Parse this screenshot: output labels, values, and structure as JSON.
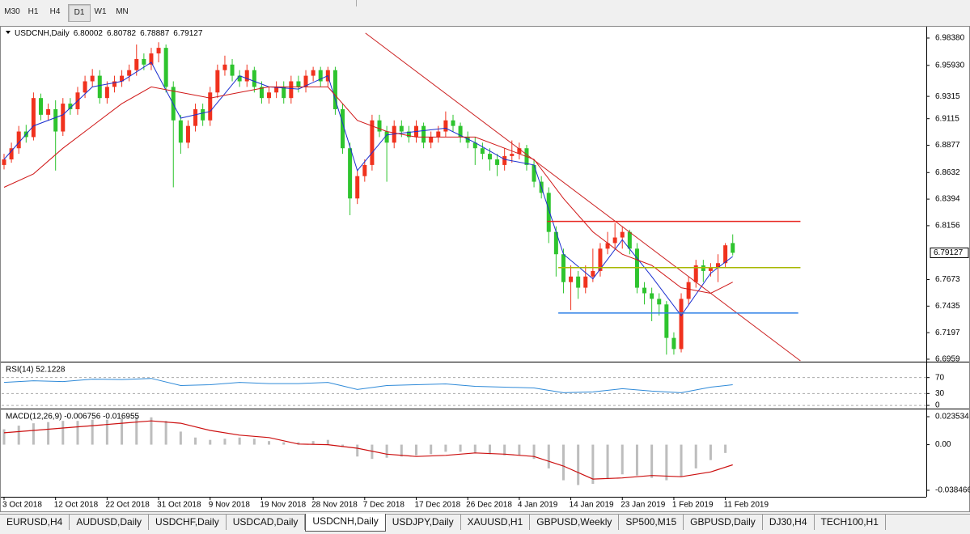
{
  "timeframes": [
    "M30",
    "H1",
    "H4",
    "D1",
    "W1",
    "MN"
  ],
  "symbol_tabs": [
    "EURUSD,H4",
    "AUDUSD,Daily",
    "USDCHF,Daily",
    "USDCAD,Daily",
    "USDCNH,Daily",
    "USDJPY,Daily",
    "XAUUSD,H1",
    "GBPUSD,Weekly",
    "SP500,M15",
    "GBPUSD,Daily",
    "DJ30,H4",
    "TECH100,H1"
  ],
  "chart_data": [
    {
      "type": "candlestick",
      "title": "USDCNH,Daily",
      "categories": [
        "3 Oct 2018",
        null,
        null,
        null,
        null,
        null,
        null,
        "12 Oct 2018",
        null,
        null,
        null,
        null,
        null,
        null,
        "22 Oct 2018",
        null,
        null,
        null,
        null,
        null,
        null,
        "31 Oct 2018",
        null,
        null,
        null,
        null,
        null,
        null,
        "9 Nov 2018",
        null,
        null,
        null,
        null,
        null,
        null,
        "19 Nov 2018",
        null,
        null,
        null,
        null,
        null,
        null,
        "28 Nov 2018",
        null,
        null,
        null,
        null,
        null,
        null,
        "7 Dec 2018",
        null,
        null,
        null,
        null,
        null,
        null,
        "17 Dec 2018",
        null,
        null,
        null,
        null,
        null,
        null,
        "26 Dec 2018",
        null,
        null,
        null,
        null,
        null,
        null,
        "4 Jan 2019",
        null,
        null,
        null,
        null,
        null,
        null,
        "14 Jan 2019",
        null,
        null,
        null,
        null,
        null,
        null,
        "23 Jan 2019",
        null,
        null,
        null,
        null,
        null,
        null,
        "1 Feb 2019",
        null,
        null,
        null,
        null,
        null,
        null,
        "11 Feb 2019",
        null
      ],
      "candles": [
        [
          6.87,
          6.88,
          6.866,
          6.875
        ],
        [
          6.875,
          6.89,
          6.872,
          6.885
        ],
        [
          6.885,
          6.905,
          6.88,
          6.9
        ],
        [
          6.9,
          6.906,
          6.89,
          6.895
        ],
        [
          6.895,
          6.935,
          6.892,
          6.93
        ],
        [
          6.93,
          6.934,
          6.91,
          6.915
        ],
        [
          6.915,
          6.925,
          6.91,
          6.92
        ],
        [
          6.92,
          6.928,
          6.865,
          6.9
        ],
        [
          6.9,
          6.93,
          6.896,
          6.925
        ],
        [
          6.925,
          6.93,
          6.915,
          6.92
        ],
        [
          6.92,
          6.94,
          6.915,
          6.935
        ],
        [
          6.935,
          6.95,
          6.93,
          6.945
        ],
        [
          6.945,
          6.956,
          6.94,
          6.95
        ],
        [
          6.95,
          6.955,
          6.925,
          6.93
        ],
        [
          6.93,
          6.945,
          6.925,
          6.94
        ],
        [
          6.94,
          6.95,
          6.935,
          6.945
        ],
        [
          6.945,
          6.955,
          6.94,
          6.95
        ],
        [
          6.95,
          6.96,
          6.945,
          6.955
        ],
        [
          6.955,
          6.978,
          6.95,
          6.965
        ],
        [
          6.965,
          6.97,
          6.955,
          6.96
        ],
        [
          6.96,
          6.975,
          6.955,
          6.97
        ],
        [
          6.97,
          6.98,
          6.962,
          6.975
        ],
        [
          6.975,
          6.978,
          6.935,
          6.94
        ],
        [
          6.94,
          6.945,
          6.85,
          6.91
        ],
        [
          6.91,
          6.915,
          6.88,
          6.89
        ],
        [
          6.89,
          6.91,
          6.885,
          6.905
        ],
        [
          6.905,
          6.925,
          6.9,
          6.92
        ],
        [
          6.92,
          6.925,
          6.905,
          6.91
        ],
        [
          6.91,
          6.94,
          6.905,
          6.935
        ],
        [
          6.935,
          6.96,
          6.93,
          6.955
        ],
        [
          6.955,
          6.968,
          6.95,
          6.96
        ],
        [
          6.96,
          6.965,
          6.945,
          6.95
        ],
        [
          6.95,
          6.955,
          6.94,
          6.945
        ],
        [
          6.945,
          6.96,
          6.94,
          6.955
        ],
        [
          6.955,
          6.958,
          6.935,
          6.94
        ],
        [
          6.94,
          6.945,
          6.925,
          6.93
        ],
        [
          6.93,
          6.94,
          6.925,
          6.935
        ],
        [
          6.935,
          6.945,
          6.93,
          6.94
        ],
        [
          6.94,
          6.945,
          6.925,
          6.93
        ],
        [
          6.93,
          6.95,
          6.925,
          6.945
        ],
        [
          6.945,
          6.95,
          6.935,
          6.94
        ],
        [
          6.94,
          6.955,
          6.935,
          6.95
        ],
        [
          6.95,
          6.958,
          6.945,
          6.955
        ],
        [
          6.955,
          6.958,
          6.94,
          6.945
        ],
        [
          6.945,
          6.958,
          6.94,
          6.955
        ],
        [
          6.955,
          6.958,
          6.915,
          6.92
        ],
        [
          6.92,
          6.925,
          6.88,
          6.885
        ],
        [
          6.885,
          6.89,
          6.825,
          6.84
        ],
        [
          6.84,
          6.865,
          6.835,
          6.86
        ],
        [
          6.86,
          6.875,
          6.855,
          6.87
        ],
        [
          6.87,
          6.915,
          6.865,
          6.91
        ],
        [
          6.91,
          6.915,
          6.895,
          6.9
        ],
        [
          6.9,
          6.905,
          6.855,
          6.89
        ],
        [
          6.89,
          6.91,
          6.885,
          6.905
        ],
        [
          6.905,
          6.91,
          6.895,
          6.9
        ],
        [
          6.9,
          6.905,
          6.89,
          6.895
        ],
        [
          6.895,
          6.91,
          6.89,
          6.905
        ],
        [
          6.905,
          6.908,
          6.885,
          6.89
        ],
        [
          6.89,
          6.9,
          6.885,
          6.895
        ],
        [
          6.895,
          6.905,
          6.89,
          6.9
        ],
        [
          6.9,
          6.918,
          6.895,
          6.91
        ],
        [
          6.91,
          6.915,
          6.9,
          6.905
        ],
        [
          6.905,
          6.908,
          6.89,
          6.895
        ],
        [
          6.895,
          6.9,
          6.885,
          6.89
        ],
        [
          6.89,
          6.895,
          6.87,
          6.885
        ],
        [
          6.885,
          6.89,
          6.875,
          6.88
        ],
        [
          6.88,
          6.885,
          6.865,
          6.875
        ],
        [
          6.875,
          6.88,
          6.86,
          6.87
        ],
        [
          6.87,
          6.885,
          6.865,
          6.878
        ],
        [
          6.878,
          6.892,
          6.872,
          6.88
        ],
        [
          6.88,
          6.89,
          6.875,
          6.885
        ],
        [
          6.885,
          6.888,
          6.865,
          6.87
        ],
        [
          6.87,
          6.875,
          6.85,
          6.855
        ],
        [
          6.855,
          6.86,
          6.84,
          6.845
        ],
        [
          6.845,
          6.85,
          6.8,
          6.81
        ],
        [
          6.81,
          6.815,
          6.77,
          6.79
        ],
        [
          6.79,
          6.795,
          6.755,
          6.765
        ],
        [
          6.765,
          6.78,
          6.74,
          6.77
        ],
        [
          6.77,
          6.775,
          6.75,
          6.76
        ],
        [
          6.76,
          6.78,
          6.755,
          6.77
        ],
        [
          6.77,
          6.795,
          6.765,
          6.775
        ],
        [
          6.775,
          6.8,
          6.77,
          6.795
        ],
        [
          6.795,
          6.81,
          6.79,
          6.8
        ],
        [
          6.8,
          6.818,
          6.795,
          6.805
        ],
        [
          6.805,
          6.815,
          6.795,
          6.81
        ],
        [
          6.81,
          6.812,
          6.79,
          6.795
        ],
        [
          6.795,
          6.8,
          6.755,
          6.76
        ],
        [
          6.76,
          6.765,
          6.745,
          6.755
        ],
        [
          6.755,
          6.76,
          6.73,
          6.75
        ],
        [
          6.75,
          6.755,
          6.735,
          6.745
        ],
        [
          6.745,
          6.748,
          6.7,
          6.715
        ],
        [
          6.715,
          6.72,
          6.7,
          6.705
        ],
        [
          6.705,
          6.755,
          6.702,
          6.75
        ],
        [
          6.75,
          6.77,
          6.745,
          6.765
        ],
        [
          6.765,
          6.785,
          6.76,
          6.78
        ],
        [
          6.78,
          6.785,
          6.765,
          6.775
        ],
        [
          6.775,
          6.782,
          6.77,
          6.778
        ],
        [
          6.778,
          6.79,
          6.765,
          6.782
        ],
        [
          6.782,
          6.8,
          6.778,
          6.798
        ],
        [
          6.80002,
          6.80782,
          6.78887,
          6.79127
        ]
      ],
      "up_color": "#f0321e",
      "down_color": "#2ec42e",
      "series": [
        {
          "color": "#1b2fd0",
          "x": [
            0,
            4,
            8,
            12,
            16,
            20,
            24,
            28,
            32,
            36,
            40,
            44,
            48,
            52,
            56,
            60,
            64,
            68,
            72,
            76,
            80,
            84,
            88,
            92,
            96,
            99
          ],
          "values": [
            6.875,
            6.905,
            6.915,
            6.94,
            6.945,
            6.962,
            6.912,
            6.918,
            6.95,
            6.94,
            6.938,
            6.95,
            6.865,
            6.897,
            6.9,
            6.903,
            6.89,
            6.875,
            6.87,
            6.79,
            6.768,
            6.803,
            6.77,
            6.735,
            6.773,
            6.788
          ]
        },
        {
          "color": "#d01818",
          "x": [
            0,
            4,
            8,
            12,
            16,
            20,
            24,
            28,
            32,
            36,
            40,
            44,
            48,
            52,
            56,
            60,
            64,
            68,
            72,
            76,
            80,
            84,
            88,
            92,
            96,
            99
          ],
          "values": [
            6.85,
            6.862,
            6.885,
            6.905,
            6.925,
            6.94,
            6.935,
            6.93,
            6.935,
            6.94,
            6.94,
            6.94,
            6.91,
            6.9,
            6.895,
            6.895,
            6.895,
            6.885,
            6.875,
            6.84,
            6.81,
            6.79,
            6.78,
            6.76,
            6.755,
            6.765
          ]
        }
      ],
      "levels": [
        {
          "value": 6.8194,
          "x": [
            73.8,
            108.2
          ],
          "color": "#e8231e"
        },
        {
          "value": 6.778,
          "x": [
            75.3,
            108.2
          ],
          "color": "#a8b800"
        },
        {
          "value": 6.7373,
          "x": [
            75.3,
            107.9
          ],
          "color": "#2f80e6"
        }
      ],
      "trendline": {
        "x": [
          49.1,
          108.2
        ],
        "values": [
          6.9882,
          6.6944
        ],
        "color": "#cc2222"
      },
      "xlim": [
        -0.33,
        125.3
      ],
      "ylim": [
        6.6937,
        6.9925
      ],
      "yticks": [
        {
          "value": 6.9838,
          "label": "6.98380"
        },
        {
          "value": 6.9593,
          "label": "6.95930"
        },
        6.9315,
        6.9115,
        6.8877,
        6.8632,
        6.8394,
        6.8156,
        6.7673,
        6.7435,
        6.7197,
        6.6959
      ]
    },
    {
      "type": "line",
      "title": "RSI(14) 52.1228",
      "color": "#2f8ad8",
      "x": [
        0,
        4,
        8,
        12,
        16,
        20,
        24,
        28,
        32,
        36,
        40,
        44,
        48,
        52,
        56,
        60,
        64,
        68,
        72,
        76,
        80,
        84,
        88,
        92,
        96,
        99
      ],
      "values": [
        58,
        62,
        60,
        66,
        65,
        68,
        50,
        52,
        58,
        55,
        55,
        58,
        40,
        50,
        52,
        54,
        48,
        46,
        44,
        32,
        34,
        42,
        36,
        32,
        46,
        52
      ],
      "xlim": [
        -0.33,
        125.3
      ],
      "ylim": [
        -8,
        106
      ],
      "yticks": [
        70,
        30,
        0
      ]
    },
    {
      "type": "macd",
      "title": "MACD(12,26,9) -0.006756 -0.016955",
      "histogram": {
        "color": "#bdbdbd",
        "x": [
          0,
          2,
          4,
          6,
          8,
          10,
          12,
          14,
          16,
          18,
          20,
          22,
          24,
          26,
          28,
          30,
          32,
          34,
          36,
          38,
          40,
          42,
          44,
          46,
          48,
          50,
          52,
          54,
          56,
          58,
          60,
          62,
          64,
          66,
          68,
          70,
          72,
          74,
          76,
          78,
          80,
          82,
          84,
          86,
          88,
          90,
          92,
          94,
          96,
          98
        ],
        "values": [
          0.013,
          0.016,
          0.018,
          0.019,
          0.02,
          0.02,
          0.021,
          0.021,
          0.022,
          0.023,
          0.023,
          0.02,
          0.011,
          0.006,
          0.004,
          0.005,
          0.006,
          0.005,
          0.003,
          0.002,
          0.002,
          0.003,
          0.004,
          -0.002,
          -0.01,
          -0.012,
          -0.011,
          -0.01,
          -0.009,
          -0.008,
          -0.006,
          -0.006,
          -0.007,
          -0.008,
          -0.009,
          -0.009,
          -0.012,
          -0.02,
          -0.03,
          -0.034,
          -0.033,
          -0.029,
          -0.025,
          -0.026,
          -0.028,
          -0.03,
          -0.027,
          -0.02,
          -0.013,
          -0.007
        ]
      },
      "signal": {
        "color": "#cc1010",
        "x": [
          0,
          4,
          8,
          12,
          16,
          20,
          24,
          28,
          32,
          36,
          40,
          44,
          48,
          52,
          56,
          60,
          64,
          68,
          72,
          76,
          80,
          84,
          88,
          92,
          96,
          99
        ],
        "values": [
          0.01,
          0.012,
          0.014,
          0.016,
          0.018,
          0.02,
          0.018,
          0.012,
          0.008,
          0.006,
          0.0005,
          0.0,
          -0.003,
          -0.008,
          -0.01,
          -0.009,
          -0.007,
          -0.008,
          -0.01,
          -0.018,
          -0.029,
          -0.028,
          -0.026,
          -0.027,
          -0.023,
          -0.017
        ]
      },
      "xlim": [
        -0.33,
        125.3
      ],
      "ylim": [
        -0.0439,
        0.029
      ],
      "yticks": [
        0.023534,
        {
          "value": 0,
          "label": "0.00"
        },
        -0.038466
      ]
    }
  ]
}
